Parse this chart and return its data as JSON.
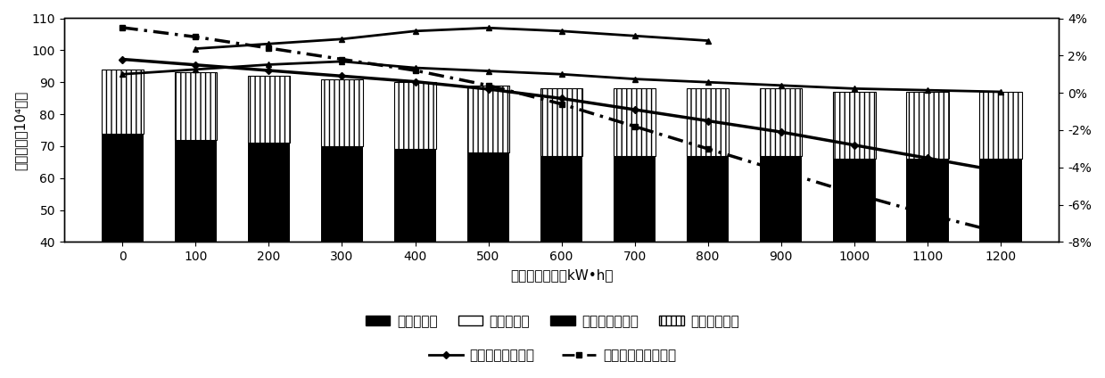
{
  "x_categories": [
    0,
    100,
    200,
    300,
    400,
    500,
    600,
    700,
    800,
    900,
    1000,
    1100,
    1200
  ],
  "bar_elec": [
    74,
    72,
    71,
    70,
    69,
    68,
    67,
    67,
    67,
    67,
    66,
    66,
    66
  ],
  "bar_top": [
    20,
    21,
    21,
    21,
    21,
    21,
    21,
    21,
    21,
    21,
    21,
    21,
    21
  ],
  "arc_line1_y": [
    92.5,
    94.0,
    95.5,
    96.5,
    94.5,
    93.5,
    92.5,
    91.0,
    90.0,
    89.0,
    88.0,
    87.5,
    87.0
  ],
  "arc_line2_y": [
    null,
    100.5,
    102.0,
    103.5,
    106.0,
    107.0,
    106.0,
    104.5,
    103.0,
    null,
    null,
    null,
    null
  ],
  "rate_annual": [
    1.8,
    1.5,
    1.2,
    0.9,
    0.6,
    0.2,
    -0.3,
    -0.9,
    -1.5,
    -2.1,
    -2.8,
    -3.5,
    -4.2
  ],
  "rate_decade": [
    3.5,
    3.0,
    2.4,
    1.8,
    1.2,
    0.4,
    -0.6,
    -1.8,
    -3.0,
    -4.2,
    -5.4,
    -6.5,
    -7.5
  ],
  "ylim_left": [
    40,
    110
  ],
  "ylim_right": [
    -8,
    4
  ],
  "yticks_left": [
    40,
    50,
    60,
    70,
    80,
    90,
    100,
    110
  ],
  "yticks_right": [
    -8,
    -6,
    -4,
    -2,
    0,
    2,
    4
  ],
  "ylabel_left": "运行成本（10⁴元）",
  "xlabel": "储能系统容量（kW•h）",
  "legend_bar1": "年购电价格",
  "legend_bar2": "年购气价格",
  "legend_bar3": "年污染治理价格",
  "legend_bar4": "储能系统成本",
  "legend_line1": "年运行成本降低率",
  "legend_line2": "十年运行成本降低率",
  "bar_color": "#000000",
  "bg_color": "#ffffff",
  "axis_fontsize": 11,
  "tick_fontsize": 10,
  "legend_fontsize": 11
}
